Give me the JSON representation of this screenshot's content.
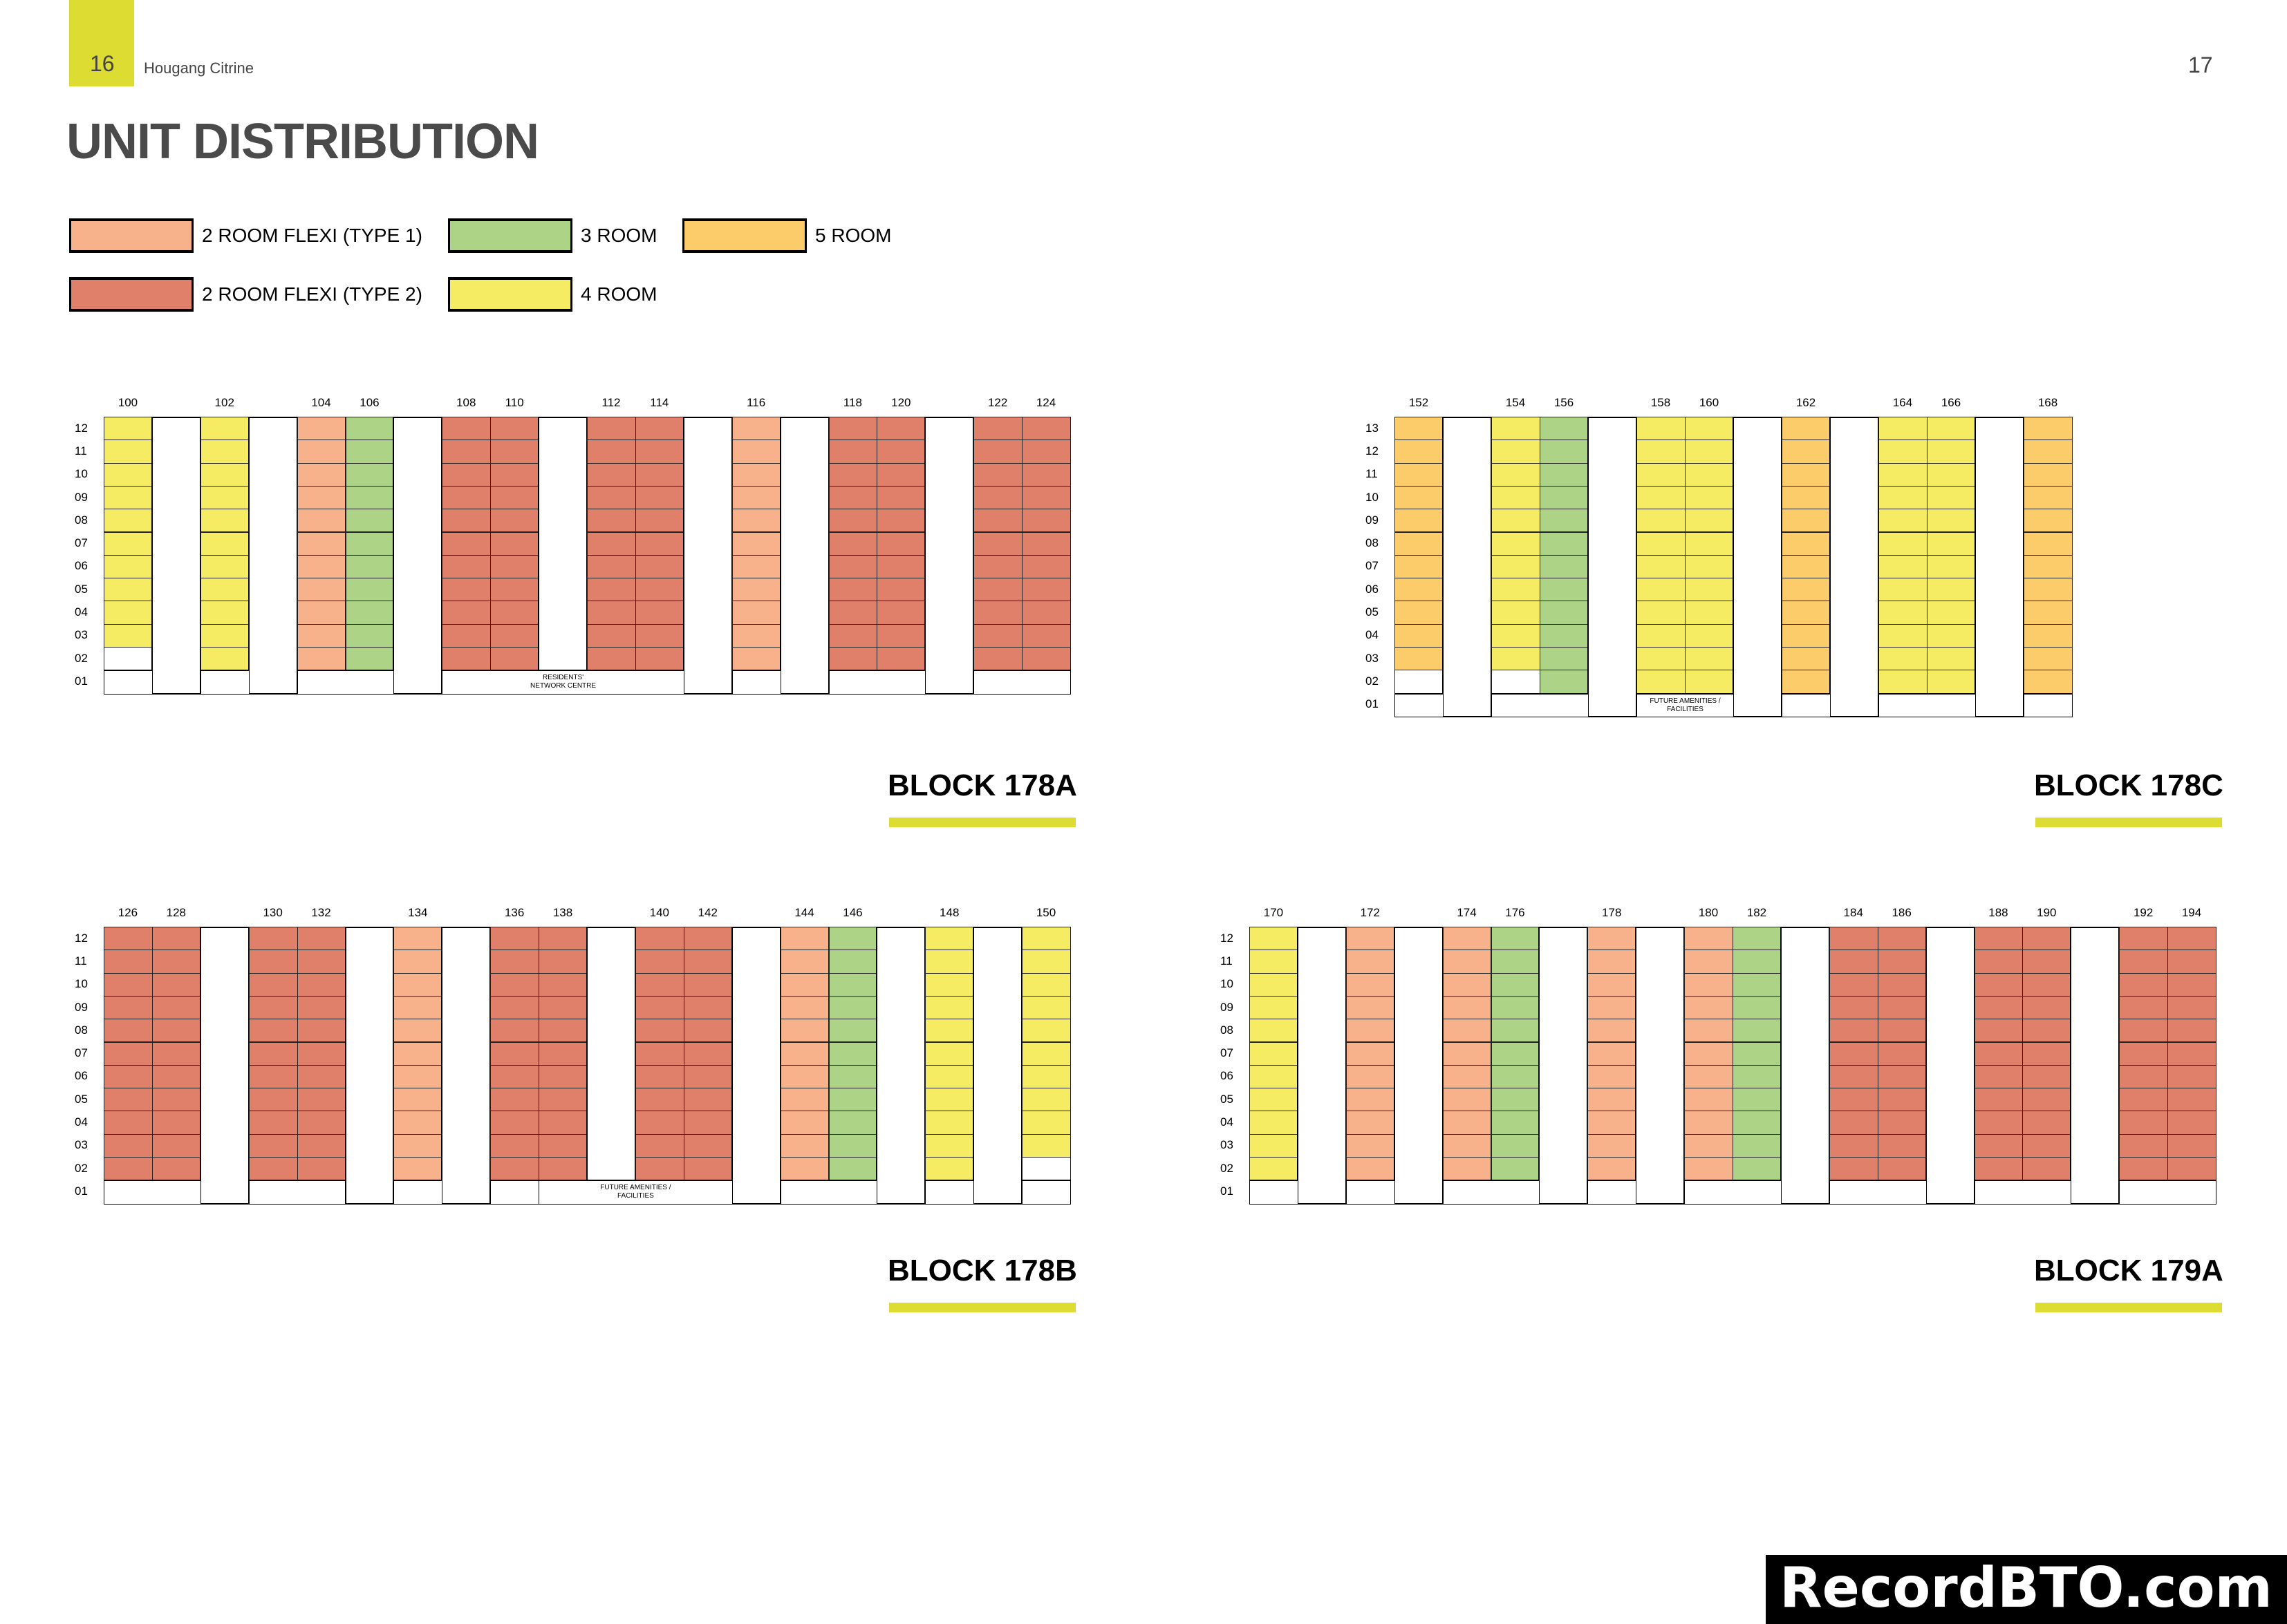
{
  "header": {
    "page_left": "16",
    "project": "Hougang Citrine",
    "page_right": "17",
    "title": "UNIT DISTRIBUTION",
    "accent_color": "#dcdc33"
  },
  "legend": [
    {
      "key": "2F1",
      "label": "2  ROOM FLEXI (TYPE 1)",
      "color": "#f7b28c"
    },
    {
      "key": "3R",
      "label": "3 ROOM",
      "color": "#acd386"
    },
    {
      "key": "5R",
      "label": "5 ROOM",
      "color": "#fdcc6a"
    },
    {
      "key": "2F2",
      "label": "2  ROOM FLEXI (TYPE 2)",
      "color": "#e07f6a"
    },
    {
      "key": "4R",
      "label": "4 ROOM",
      "color": "#f5ec63"
    }
  ],
  "blocks": [
    {
      "name": "BLOCK 178A",
      "floors": [
        "12",
        "11",
        "10",
        "09",
        "08",
        "07",
        "06",
        "05",
        "04",
        "03",
        "02",
        "01"
      ],
      "stacks": [
        {
          "unit": "100",
          "type": "4R",
          "lowest": 3
        },
        {
          "unit": "",
          "type": "gap"
        },
        {
          "unit": "102",
          "type": "4R",
          "lowest": 2
        },
        {
          "unit": "",
          "type": "gap"
        },
        {
          "unit": "104",
          "type": "2F1",
          "lowest": 2
        },
        {
          "unit": "106",
          "type": "3R",
          "lowest": 2
        },
        {
          "unit": "",
          "type": "gap"
        },
        {
          "unit": "108",
          "type": "2F2",
          "lowest": 2
        },
        {
          "unit": "110",
          "type": "2F2",
          "lowest": 2
        },
        {
          "unit": "",
          "type": "gap"
        },
        {
          "unit": "112",
          "type": "2F2",
          "lowest": 2
        },
        {
          "unit": "114",
          "type": "2F2",
          "lowest": 2
        },
        {
          "unit": "",
          "type": "gap"
        },
        {
          "unit": "116",
          "type": "2F1",
          "lowest": 2
        },
        {
          "unit": "",
          "type": "gap"
        },
        {
          "unit": "118",
          "type": "2F2",
          "lowest": 2
        },
        {
          "unit": "120",
          "type": "2F2",
          "lowest": 2
        },
        {
          "unit": "",
          "type": "gap"
        },
        {
          "unit": "122",
          "type": "2F2",
          "lowest": 2
        },
        {
          "unit": "124",
          "type": "2F2",
          "lowest": 2
        }
      ],
      "ground": [
        {
          "from": 0,
          "to": 0,
          "label": ""
        },
        {
          "from": 2,
          "to": 2,
          "label": ""
        },
        {
          "from": 4,
          "to": 5,
          "label": ""
        },
        {
          "from": 7,
          "to": 11,
          "label": "RESIDENTS'\nNETWORK CENTRE"
        },
        {
          "from": 13,
          "to": 13,
          "label": ""
        },
        {
          "from": 15,
          "to": 16,
          "label": ""
        },
        {
          "from": 18,
          "to": 19,
          "label": ""
        }
      ]
    },
    {
      "name": "BLOCK 178C",
      "floors": [
        "13",
        "12",
        "11",
        "10",
        "09",
        "08",
        "07",
        "06",
        "05",
        "04",
        "03",
        "02",
        "01"
      ],
      "stacks": [
        {
          "unit": "152",
          "type": "5R",
          "lowest": 3
        },
        {
          "unit": "",
          "type": "gap"
        },
        {
          "unit": "154",
          "type": "4R",
          "lowest": 3
        },
        {
          "unit": "156",
          "type": "3R",
          "lowest": 2
        },
        {
          "unit": "",
          "type": "gap"
        },
        {
          "unit": "158",
          "type": "4R",
          "lowest": 2
        },
        {
          "unit": "160",
          "type": "4R",
          "lowest": 2
        },
        {
          "unit": "",
          "type": "gap"
        },
        {
          "unit": "162",
          "type": "5R",
          "lowest": 2
        },
        {
          "unit": "",
          "type": "gap"
        },
        {
          "unit": "164",
          "type": "4R",
          "lowest": 2
        },
        {
          "unit": "166",
          "type": "4R",
          "lowest": 2
        },
        {
          "unit": "",
          "type": "gap"
        },
        {
          "unit": "168",
          "type": "5R",
          "lowest": 2
        }
      ],
      "ground": [
        {
          "from": 0,
          "to": 0,
          "label": ""
        },
        {
          "from": 2,
          "to": 3,
          "label": ""
        },
        {
          "from": 5,
          "to": 6,
          "label": "FUTURE AMENITIES /\nFACILITIES"
        },
        {
          "from": 8,
          "to": 8,
          "label": ""
        },
        {
          "from": 10,
          "to": 11,
          "label": ""
        },
        {
          "from": 13,
          "to": 13,
          "label": ""
        }
      ]
    },
    {
      "name": "BLOCK 178B",
      "floors": [
        "12",
        "11",
        "10",
        "09",
        "08",
        "07",
        "06",
        "05",
        "04",
        "03",
        "02",
        "01"
      ],
      "stacks": [
        {
          "unit": "126",
          "type": "2F2",
          "lowest": 2
        },
        {
          "unit": "128",
          "type": "2F2",
          "lowest": 2
        },
        {
          "unit": "",
          "type": "gap"
        },
        {
          "unit": "130",
          "type": "2F2",
          "lowest": 2
        },
        {
          "unit": "132",
          "type": "2F2",
          "lowest": 2
        },
        {
          "unit": "",
          "type": "gap"
        },
        {
          "unit": "134",
          "type": "2F1",
          "lowest": 2
        },
        {
          "unit": "",
          "type": "gap"
        },
        {
          "unit": "136",
          "type": "2F2",
          "lowest": 2
        },
        {
          "unit": "138",
          "type": "2F2",
          "lowest": 2
        },
        {
          "unit": "",
          "type": "gap"
        },
        {
          "unit": "140",
          "type": "2F2",
          "lowest": 2
        },
        {
          "unit": "142",
          "type": "2F2",
          "lowest": 2
        },
        {
          "unit": "",
          "type": "gap"
        },
        {
          "unit": "144",
          "type": "2F1",
          "lowest": 2
        },
        {
          "unit": "146",
          "type": "3R",
          "lowest": 2
        },
        {
          "unit": "",
          "type": "gap"
        },
        {
          "unit": "148",
          "type": "4R",
          "lowest": 2
        },
        {
          "unit": "",
          "type": "gap"
        },
        {
          "unit": "150",
          "type": "4R",
          "lowest": 3
        }
      ],
      "ground": [
        {
          "from": 0,
          "to": 1,
          "label": ""
        },
        {
          "from": 3,
          "to": 4,
          "label": ""
        },
        {
          "from": 6,
          "to": 6,
          "label": ""
        },
        {
          "from": 8,
          "to": 8,
          "label": ""
        },
        {
          "from": 9,
          "to": 12,
          "label": "FUTURE AMENITIES /\nFACILITIES"
        },
        {
          "from": 14,
          "to": 15,
          "label": ""
        },
        {
          "from": 17,
          "to": 17,
          "label": ""
        },
        {
          "from": 19,
          "to": 19,
          "label": ""
        }
      ]
    },
    {
      "name": "BLOCK 179A",
      "floors": [
        "12",
        "11",
        "10",
        "09",
        "08",
        "07",
        "06",
        "05",
        "04",
        "03",
        "02",
        "01"
      ],
      "stacks": [
        {
          "unit": "170",
          "type": "4R",
          "lowest": 2
        },
        {
          "unit": "",
          "type": "gap"
        },
        {
          "unit": "172",
          "type": "2F1",
          "lowest": 2
        },
        {
          "unit": "",
          "type": "gap"
        },
        {
          "unit": "174",
          "type": "2F1",
          "lowest": 2
        },
        {
          "unit": "176",
          "type": "3R",
          "lowest": 2
        },
        {
          "unit": "",
          "type": "gap"
        },
        {
          "unit": "178",
          "type": "2F1",
          "lowest": 2
        },
        {
          "unit": "",
          "type": "gap"
        },
        {
          "unit": "180",
          "type": "2F1",
          "lowest": 2
        },
        {
          "unit": "182",
          "type": "3R",
          "lowest": 2
        },
        {
          "unit": "",
          "type": "gap"
        },
        {
          "unit": "184",
          "type": "2F2",
          "lowest": 2
        },
        {
          "unit": "186",
          "type": "2F2",
          "lowest": 2
        },
        {
          "unit": "",
          "type": "gap"
        },
        {
          "unit": "188",
          "type": "2F2",
          "lowest": 2
        },
        {
          "unit": "190",
          "type": "2F2",
          "lowest": 2
        },
        {
          "unit": "",
          "type": "gap"
        },
        {
          "unit": "192",
          "type": "2F2",
          "lowest": 2
        },
        {
          "unit": "194",
          "type": "2F2",
          "lowest": 2
        }
      ],
      "ground": [
        {
          "from": 0,
          "to": 0,
          "label": ""
        },
        {
          "from": 2,
          "to": 2,
          "label": ""
        },
        {
          "from": 4,
          "to": 5,
          "label": ""
        },
        {
          "from": 7,
          "to": 7,
          "label": ""
        },
        {
          "from": 9,
          "to": 10,
          "label": ""
        },
        {
          "from": 12,
          "to": 13,
          "label": ""
        },
        {
          "from": 15,
          "to": 16,
          "label": ""
        },
        {
          "from": 18,
          "to": 19,
          "label": ""
        }
      ]
    }
  ],
  "watermark": "RecordBTO.com"
}
